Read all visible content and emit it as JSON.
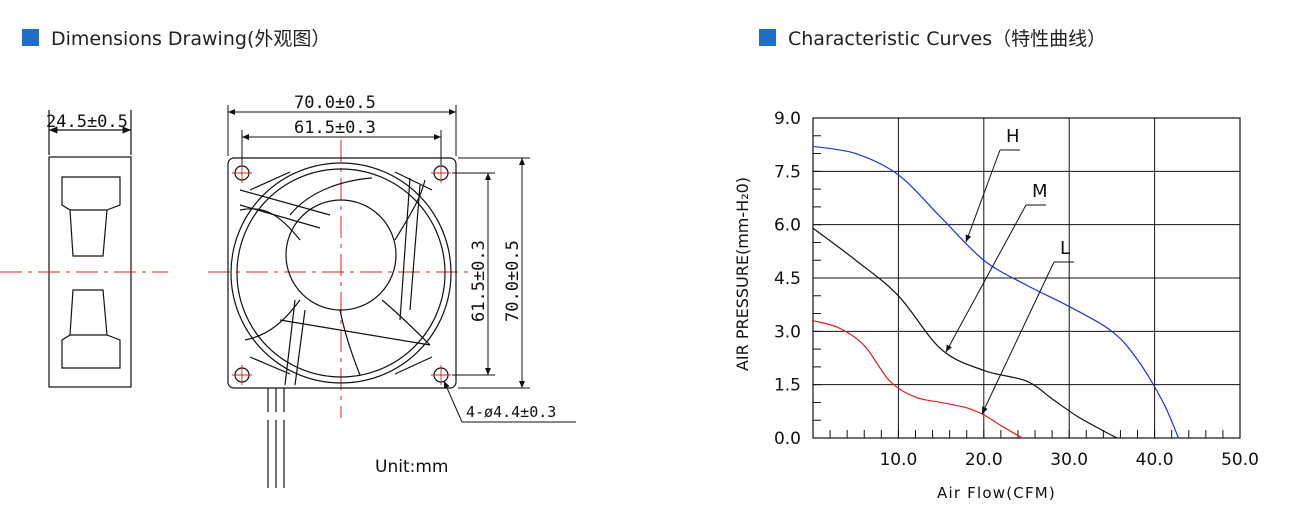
{
  "left_section": {
    "title": "Dimensions Drawing(外观图）"
  },
  "right_section": {
    "title": "Characteristic Curves（特性曲线）"
  },
  "drawing": {
    "depth": "24.5±0.5",
    "outer_width": "70.0±0.5",
    "hole_spacing_h": "61.5±0.3",
    "hole_spacing_v": "61.5±0.3",
    "outer_height": "70.0±0.5",
    "holes": "4-ø4.4±0.3",
    "unit": "Unit:mm"
  },
  "chart_data": {
    "type": "line",
    "xlabel": "Air Flow(CFM)",
    "ylabel": "AIR PRESSURE(mm-H₂0)",
    "xlim": [
      0,
      50
    ],
    "ylim": [
      0,
      9
    ],
    "x_ticks": [
      "10.0",
      "20.0",
      "30.0",
      "40.0",
      "50.0"
    ],
    "y_ticks": [
      "0.0",
      "1.5",
      "3.0",
      "4.5",
      "6.0",
      "7.5",
      "9.0"
    ],
    "grid": true,
    "series": [
      {
        "name": "H",
        "color": "#2233dd",
        "x": [
          0,
          5,
          10,
          15,
          20,
          25,
          30,
          35,
          38,
          41,
          42.8
        ],
        "y": [
          8.2,
          8.0,
          7.4,
          6.2,
          5.0,
          4.3,
          3.7,
          3.0,
          2.2,
          1.0,
          0.0
        ]
      },
      {
        "name": "M",
        "color": "#111111",
        "x": [
          0,
          5,
          10,
          15,
          20,
          25,
          28,
          31,
          34,
          35.6
        ],
        "y": [
          5.9,
          5.0,
          4.0,
          2.5,
          1.9,
          1.6,
          1.1,
          0.6,
          0.2,
          0.0
        ]
      },
      {
        "name": "L",
        "color": "#dd2222",
        "x": [
          0,
          3,
          6,
          9,
          12,
          15,
          18,
          20,
          22,
          24.5
        ],
        "y": [
          3.3,
          3.1,
          2.6,
          1.6,
          1.15,
          1.0,
          0.85,
          0.65,
          0.35,
          0.0
        ]
      }
    ]
  }
}
